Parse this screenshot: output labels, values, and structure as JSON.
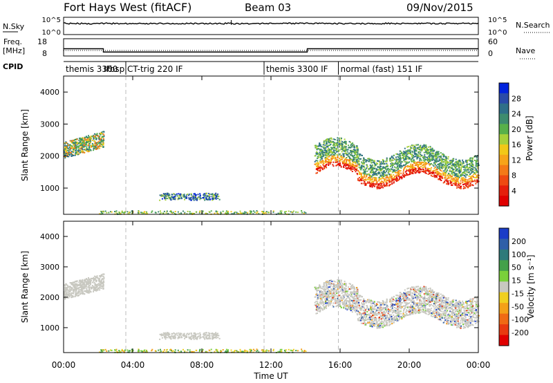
{
  "header": {
    "title": "Fort Hays West (fitACF)",
    "beam": "Beam 03",
    "date": "09/Nov/2015"
  },
  "noise_panel": {
    "left_label": "N.Sky",
    "left_ticks": [
      "10^5",
      "10^0"
    ],
    "right_label": "N.Search",
    "right_ticks": [
      "10^5",
      "10^0"
    ]
  },
  "freq_panel": {
    "left_label_line1": "Freq.",
    "left_label_line2": "[MHz]",
    "left_ticks": [
      "18",
      "8"
    ],
    "right_label": "Nave",
    "right_ticks": [
      "60",
      "0"
    ],
    "freq_steps": [
      {
        "start": 0,
        "end": 2.3,
        "level": 12.2
      },
      {
        "start": 2.3,
        "end": 14.1,
        "level": 10.3
      },
      {
        "start": 14.1,
        "end": 24,
        "level": 12.2
      }
    ]
  },
  "cpid": {
    "label": "CPID",
    "segments": [
      {
        "start": 0,
        "text": "themis 3300"
      },
      {
        "start": 2.2,
        "text": "IF"
      },
      {
        "start": 2.35,
        "text": "rbsp CT-trig 220 IF"
      },
      {
        "start": 11.6,
        "text": "themis 3300 IF"
      },
      {
        "start": 15.9,
        "text": "normal (fast) 151 IF"
      }
    ],
    "boundaries": [
      3.6,
      11.6,
      15.9
    ]
  },
  "power_panel": {
    "ylabel": "Slant Range [km]",
    "yticks": [
      1000,
      2000,
      3000,
      4000
    ],
    "colorbar_label": "Power [dB]",
    "colorbar_ticks": [
      "28",
      "24",
      "20",
      "16",
      "12",
      "8",
      "4"
    ],
    "colors": [
      "#0022dd",
      "#2a4ba8",
      "#2f6f88",
      "#3e8c6e",
      "#58b04a",
      "#a8d03a",
      "#f2c818",
      "#f7a41a",
      "#f47a18",
      "#ee4a12",
      "#e51f0c",
      "#e00000"
    ]
  },
  "velocity_panel": {
    "ylabel": "Slant Range [km]",
    "yticks": [
      1000,
      2000,
      3000,
      4000
    ],
    "colorbar_label": "Velocity [m s⁻¹]",
    "colorbar_ticks": [
      "200",
      "100",
      "50",
      "15",
      "-15",
      "-50",
      "-100",
      "-200"
    ],
    "colors": [
      "#1a3cc8",
      "#2f5fa8",
      "#2e7a7a",
      "#43a04a",
      "#7ad03a",
      "#c8c8c0",
      "#f0d020",
      "#f4a018",
      "#f06a14",
      "#e83a10",
      "#e00000"
    ]
  },
  "x_axis": {
    "label": "Time UT",
    "ticks": [
      "00:00",
      "04:00",
      "08:00",
      "12:00",
      "16:00",
      "20:00",
      "00:00"
    ]
  },
  "chart_data": {
    "type": "heatmap",
    "x_range_hours": [
      0,
      24
    ],
    "y_range_km": [
      180,
      4500
    ],
    "echo_regions": [
      {
        "name": "early",
        "t_start": 0,
        "t_end": 2.3,
        "range_center": 2300,
        "range_width": 500
      },
      {
        "name": "mid",
        "t_start": 5.5,
        "t_end": 9,
        "range_center": 750,
        "range_width": 220
      },
      {
        "name": "ground",
        "t_start": 2,
        "t_end": 14,
        "range_center": 250,
        "range_width": 120
      },
      {
        "name": "late",
        "t_start": 14.5,
        "t_end": 24,
        "range_center": 1900,
        "range_width": 900
      }
    ]
  }
}
